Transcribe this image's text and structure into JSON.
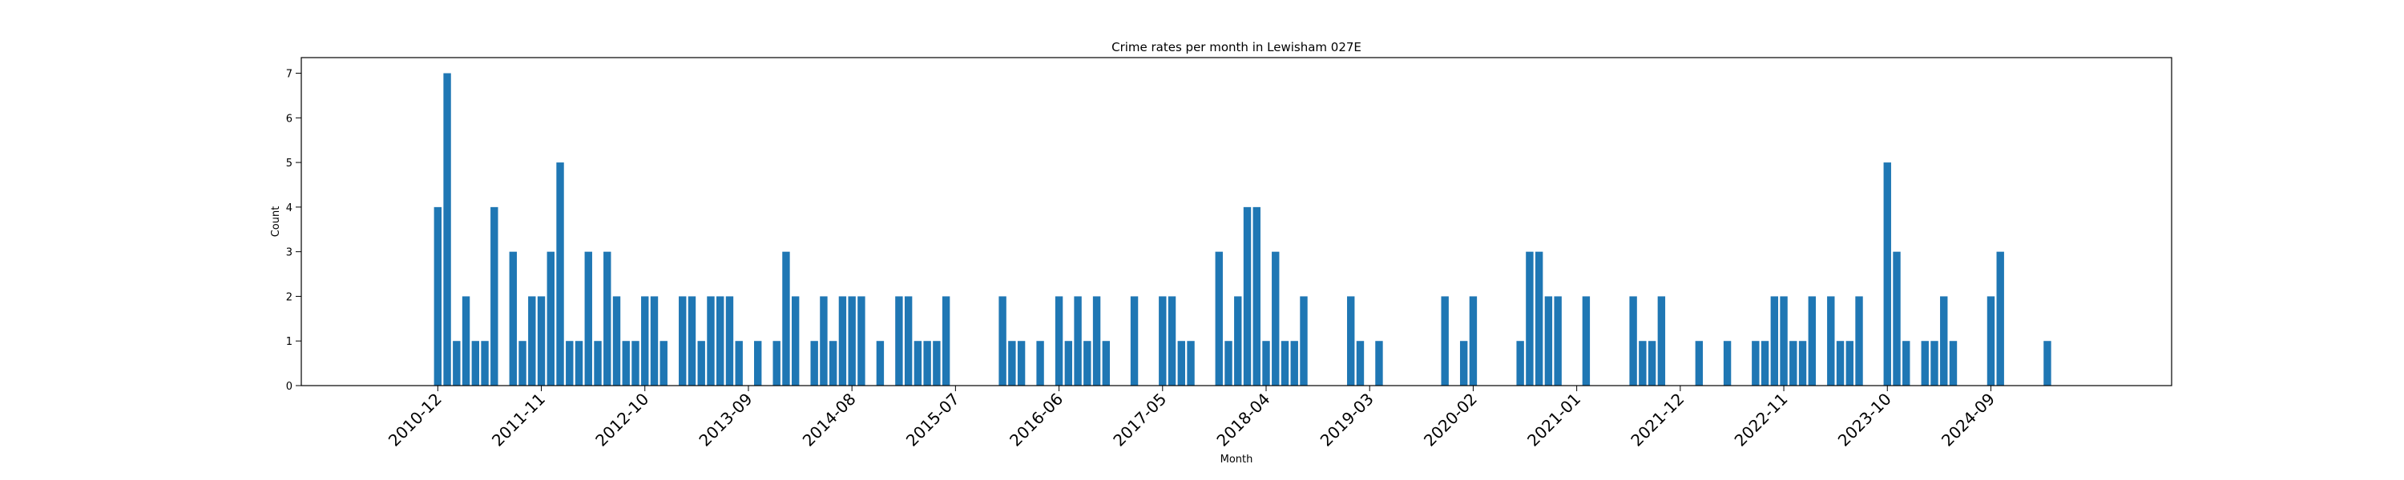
{
  "chart_data": {
    "type": "bar",
    "title": "Crime rates per month in Lewisham 027E",
    "xlabel": "Month",
    "ylabel": "Count",
    "ylim": [
      0,
      7.35
    ],
    "y_ticks": [
      0,
      1,
      2,
      3,
      4,
      5,
      6,
      7
    ],
    "grid": false,
    "legend": "none",
    "bar_color": "#1f77b4",
    "x_ticks": [
      "2010-12",
      "2011-11",
      "2012-10",
      "2013-09",
      "2014-08",
      "2015-07",
      "2016-06",
      "2017-05",
      "2018-04",
      "2019-03",
      "2020-02",
      "2021-01",
      "2021-12",
      "2022-11",
      "2023-10",
      "2024-09"
    ],
    "series": [
      {
        "x": [
          "2010-12",
          "2011-01",
          "2011-02",
          "2011-03",
          "2011-04",
          "2011-05",
          "2011-06",
          "2011-08",
          "2011-09",
          "2011-10",
          "2011-11",
          "2011-12",
          "2012-01",
          "2012-02",
          "2012-03",
          "2012-04",
          "2012-05",
          "2012-06",
          "2012-07",
          "2012-08",
          "2012-09",
          "2012-10",
          "2012-11",
          "2012-12",
          "2013-02",
          "2013-03",
          "2013-04",
          "2013-05",
          "2013-06",
          "2013-07",
          "2013-08",
          "2013-10",
          "2013-12",
          "2014-01",
          "2014-02",
          "2014-04",
          "2014-05",
          "2014-06",
          "2014-07",
          "2014-08",
          "2014-09",
          "2014-11",
          "2015-01",
          "2015-02",
          "2015-03",
          "2015-04",
          "2015-05",
          "2015-06",
          "2015-12",
          "2016-01",
          "2016-02",
          "2016-04",
          "2016-06",
          "2016-07",
          "2016-08",
          "2016-09",
          "2016-10",
          "2016-11",
          "2017-02",
          "2017-05",
          "2017-06",
          "2017-07",
          "2017-08",
          "2017-11",
          "2017-12",
          "2018-01",
          "2018-02",
          "2018-03",
          "2018-04",
          "2018-05",
          "2018-06",
          "2018-07",
          "2018-08",
          "2019-01",
          "2019-02",
          "2019-04",
          "2019-11",
          "2020-01",
          "2020-02",
          "2020-07",
          "2020-08",
          "2020-09",
          "2020-10",
          "2020-11",
          "2021-02",
          "2021-07",
          "2021-08",
          "2021-09",
          "2021-10",
          "2022-02",
          "2022-05",
          "2022-08",
          "2022-09",
          "2022-10",
          "2022-11",
          "2022-12",
          "2023-01",
          "2023-02",
          "2023-04",
          "2023-05",
          "2023-06",
          "2023-07",
          "2023-10",
          "2023-11",
          "2023-12",
          "2024-02",
          "2024-03",
          "2024-04",
          "2024-05",
          "2024-09",
          "2024-10",
          "2025-03"
        ],
        "values": [
          4,
          7,
          1,
          2,
          1,
          1,
          4,
          3,
          1,
          2,
          2,
          3,
          5,
          1,
          1,
          3,
          1,
          3,
          2,
          1,
          1,
          2,
          2,
          1,
          2,
          2,
          1,
          2,
          2,
          2,
          1,
          1,
          1,
          3,
          2,
          1,
          2,
          1,
          2,
          2,
          2,
          1,
          2,
          2,
          1,
          1,
          1,
          2,
          2,
          1,
          1,
          1,
          2,
          1,
          2,
          1,
          2,
          1,
          2,
          2,
          2,
          1,
          1,
          3,
          1,
          2,
          4,
          4,
          1,
          3,
          1,
          1,
          2,
          2,
          1,
          1,
          2,
          1,
          2,
          1,
          3,
          3,
          2,
          2,
          2,
          2,
          1,
          1,
          2,
          1,
          1,
          1,
          1,
          2,
          2,
          1,
          1,
          2,
          2,
          1,
          1,
          2,
          5,
          3,
          1,
          1,
          1,
          2,
          1,
          2,
          3,
          1
        ]
      }
    ]
  }
}
